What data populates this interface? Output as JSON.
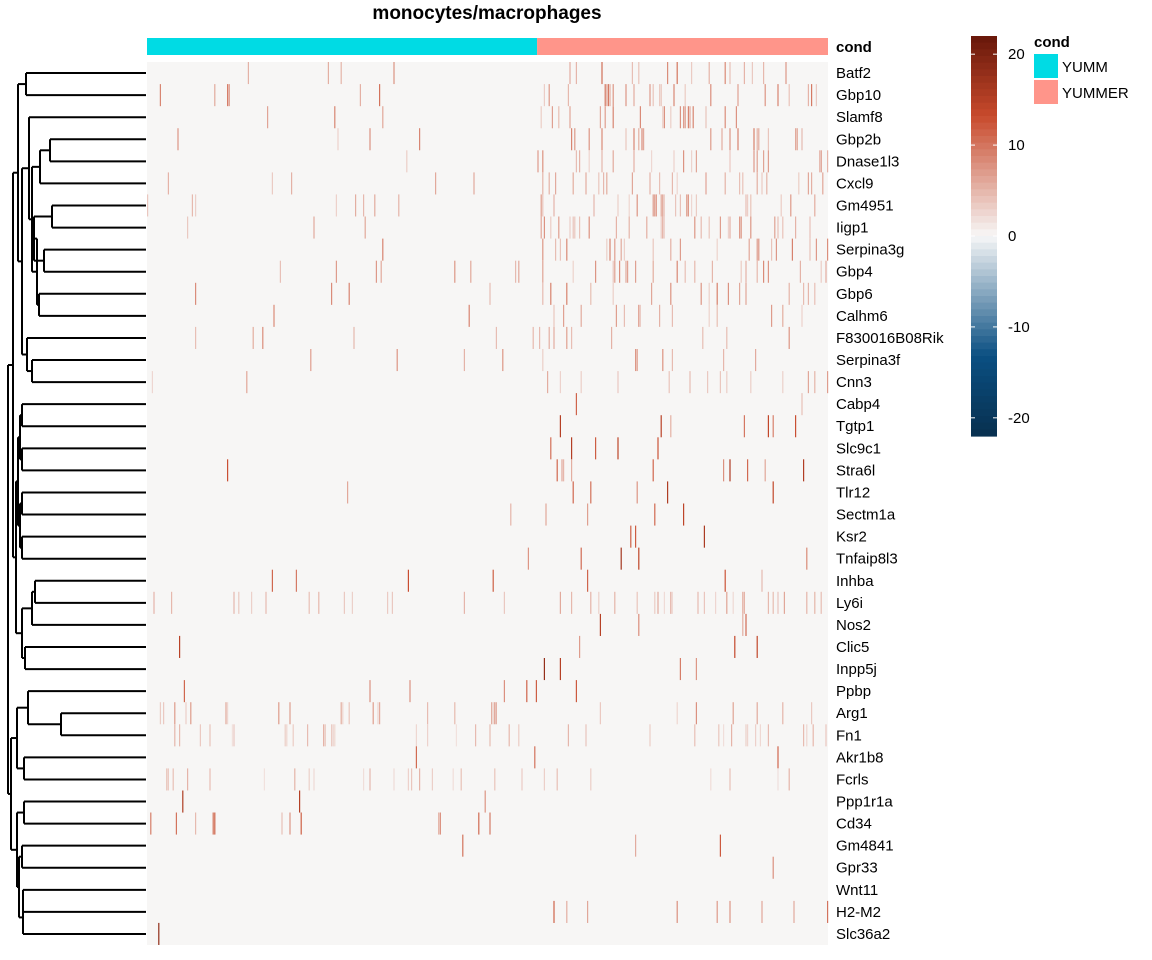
{
  "chart_data": {
    "type": "heatmap",
    "title": "monocytes/macrophages",
    "annotation": {
      "name": "cond",
      "groups": [
        {
          "label": "YUMM",
          "color": "#00DBE4",
          "fraction": 0.5728
        },
        {
          "label": "YUMMER",
          "color": "#FF958A",
          "fraction": 0.4272
        }
      ]
    },
    "rows": [
      "Batf2",
      "Gbp10",
      "Slamf8",
      "Gbp2b",
      "Dnase1l3",
      "Cxcl9",
      "Gm4951",
      "Iigp1",
      "Serpina3g",
      "Gbp4",
      "Gbp6",
      "Calhm6",
      "F830016B08Rik",
      "Serpina3f",
      "Cnn3",
      "Cabp4",
      "Tgtp1",
      "Slc9c1",
      "Stra6l",
      "Tlr12",
      "Sectm1a",
      "Ksr2",
      "Tnfaip8l3",
      "Inhba",
      "Ly6i",
      "Nos2",
      "Clic5",
      "Inpp5j",
      "Ppbp",
      "Arg1",
      "Fn1",
      "Akr1b8",
      "Fcrls",
      "Ppp1r1a",
      "Cd34",
      "Gm4841",
      "Gpr33",
      "Wnt11",
      "H2-M2",
      "Slc36a2"
    ],
    "color_scale": {
      "min": -22,
      "max": 22,
      "mid": 0,
      "ticks": [
        "20",
        "10",
        "0",
        "-10",
        "-20"
      ],
      "tick_values": [
        20,
        10,
        0,
        -10,
        -20
      ],
      "low_color": "#08304F",
      "mid_color": "#F7F7F7",
      "high_color": "#67170A"
    },
    "row_dendrogram": true,
    "background_value": 0.1
  }
}
